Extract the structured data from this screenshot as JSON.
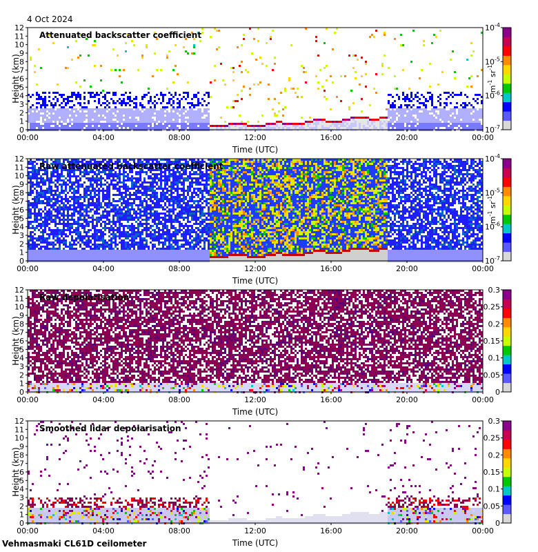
{
  "date": "4 Oct 2024",
  "footer": "Vehmasmaki CL61D ceilometer",
  "colors": {
    "sky_white": "#ffffff",
    "cb_stops": [
      "#d8d8d8",
      "#5a5aff",
      "#0000ff",
      "#00c8c8",
      "#00c800",
      "#c8ff00",
      "#ffd700",
      "#ff8c00",
      "#ff0000",
      "#c80050",
      "#8b008b"
    ]
  },
  "chart_data": [
    {
      "type": "heatmap",
      "title": "Attenuated backscatter coefficient",
      "xlabel": "Time (UTC)",
      "ylabel": "Height (km)",
      "x_ticks": [
        "00:00",
        "04:00",
        "08:00",
        "12:00",
        "16:00",
        "20:00",
        "00:00"
      ],
      "y_ticks": [
        "0",
        "1",
        "2",
        "3",
        "4",
        "5",
        "6",
        "7",
        "8",
        "9",
        "10",
        "11",
        "12"
      ],
      "ylim": [
        0,
        12
      ],
      "colorbar": {
        "scale": "log",
        "ticks": [
          "10^-7",
          "10^-6",
          "10^-5",
          "10^-4"
        ],
        "label": "m^-1 sr^-1"
      },
      "variant": "att"
    },
    {
      "type": "heatmap",
      "title": "Raw attenuated backscatter coefficient",
      "xlabel": "Time (UTC)",
      "ylabel": "Height (km)",
      "x_ticks": [
        "00:00",
        "04:00",
        "08:00",
        "12:00",
        "16:00",
        "20:00",
        "00:00"
      ],
      "y_ticks": [
        "0",
        "1",
        "2",
        "3",
        "4",
        "5",
        "6",
        "7",
        "8",
        "9",
        "10",
        "11",
        "12"
      ],
      "ylim": [
        0,
        12
      ],
      "colorbar": {
        "scale": "log",
        "ticks": [
          "10^-7",
          "10^-6",
          "10^-5",
          "10^-4"
        ],
        "label": "m^-1 sr^-1"
      },
      "variant": "raw"
    },
    {
      "type": "heatmap",
      "title": "Raw depolarisation",
      "xlabel": "Time (UTC)",
      "ylabel": "Height (km)",
      "x_ticks": [
        "00:00",
        "04:00",
        "08:00",
        "12:00",
        "16:00",
        "20:00",
        "00:00"
      ],
      "y_ticks": [
        "0",
        "1",
        "2",
        "3",
        "4",
        "5",
        "6",
        "7",
        "8",
        "9",
        "10",
        "11",
        "12"
      ],
      "ylim": [
        0,
        12
      ],
      "colorbar": {
        "scale": "linear",
        "ticks": [
          "0",
          "0.05",
          "0.1",
          "0.15",
          "0.2",
          "0.25",
          "0.3"
        ],
        "label": ""
      },
      "variant": "rawdepol"
    },
    {
      "type": "heatmap",
      "title": "Smoothed lidar depolarisation",
      "xlabel": "Time (UTC)",
      "ylabel": "Height (km)",
      "x_ticks": [
        "00:00",
        "04:00",
        "08:00",
        "12:00",
        "16:00",
        "20:00",
        "00:00"
      ],
      "y_ticks": [
        "0",
        "1",
        "2",
        "3",
        "4",
        "5",
        "6",
        "7",
        "8",
        "9",
        "10",
        "11",
        "12"
      ],
      "ylim": [
        0,
        12
      ],
      "colorbar": {
        "scale": "linear",
        "ticks": [
          "0",
          "0.05",
          "0.1",
          "0.15",
          "0.2",
          "0.25",
          "0.3"
        ],
        "label": ""
      },
      "variant": "smooth"
    }
  ]
}
